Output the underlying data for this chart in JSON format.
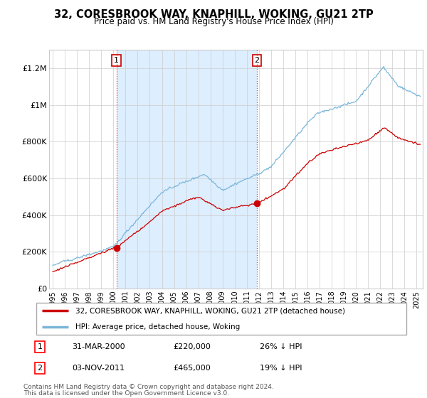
{
  "title": "32, CORESBROOK WAY, KNAPHILL, WOKING, GU21 2TP",
  "subtitle": "Price paid vs. HM Land Registry's House Price Index (HPI)",
  "hpi_label": "HPI: Average price, detached house, Woking",
  "price_label": "32, CORESBROOK WAY, KNAPHILL, WOKING, GU21 2TP (detached house)",
  "footnote1": "Contains HM Land Registry data © Crown copyright and database right 2024.",
  "footnote2": "This data is licensed under the Open Government Licence v3.0.",
  "transaction1_date": "31-MAR-2000",
  "transaction1_price": "£220,000",
  "transaction1_hpi": "26% ↓ HPI",
  "transaction1_year": 2000.25,
  "transaction1_value": 220000,
  "transaction2_date": "03-NOV-2011",
  "transaction2_price": "£465,000",
  "transaction2_hpi": "19% ↓ HPI",
  "transaction2_year": 2011.83,
  "transaction2_value": 465000,
  "hpi_color": "#7ab5d8",
  "price_color": "#cc0000",
  "marker_color": "#cc0000",
  "shade_color": "#ddeeff",
  "ylim": [
    0,
    1300000
  ],
  "xlim_start": 1994.7,
  "xlim_end": 2025.5,
  "background_color": "#ffffff",
  "grid_color": "#cccccc"
}
